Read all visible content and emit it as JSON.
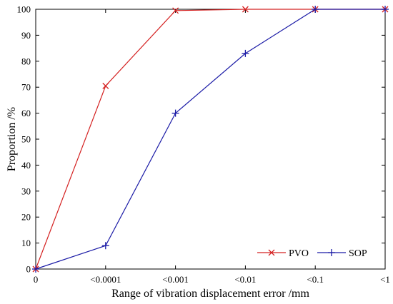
{
  "chart_data": {
    "type": "line",
    "categories": [
      "0",
      "<0.0001",
      "<0.001",
      "<0.01",
      "<0.1",
      "<1"
    ],
    "series": [
      {
        "name": "PVO",
        "values": [
          0,
          70.5,
          99.5,
          100,
          100,
          100
        ],
        "color": "#d42020",
        "marker": "x"
      },
      {
        "name": "SOP",
        "values": [
          0,
          9,
          60,
          83,
          100,
          100
        ],
        "color": "#1a1aa6",
        "marker": "plus"
      }
    ],
    "xlabel": "Range of vibration displacement error /mm",
    "ylabel": "Proportion /%",
    "ylim": [
      0,
      100
    ],
    "yticks": [
      0,
      10,
      20,
      30,
      40,
      50,
      60,
      70,
      80,
      90,
      100
    ],
    "grid": false,
    "legend_position": "bottom-right"
  }
}
